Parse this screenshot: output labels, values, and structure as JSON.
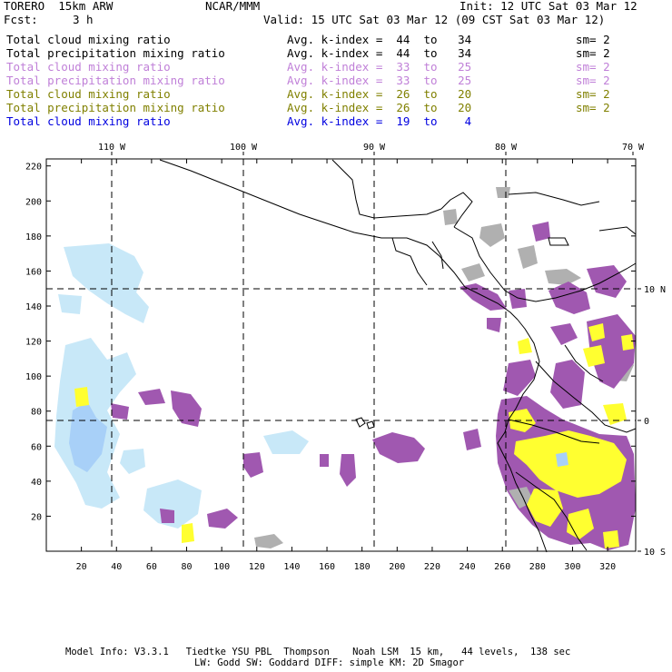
{
  "header": {
    "model": "TORERO  15km ARW",
    "org": "NCAR/MMM",
    "init": "Init: 12 UTC Sat 03 Mar 12",
    "fcst_label": "Fcst:",
    "fcst_value": "3 h",
    "valid": "Valid: 15 UTC Sat 03 Mar 12 (09 CST Sat 03 Mar 12)"
  },
  "legend": [
    {
      "field": "Total cloud mixing ratio",
      "kindex": "Avg. k-index =  44  to   34",
      "sm": "sm= 2",
      "color": "#000000"
    },
    {
      "field": "Total precipitation mixing ratio",
      "kindex": "Avg. k-index =  44  to   34",
      "sm": "sm= 2",
      "color": "#000000"
    },
    {
      "field": "Total cloud mixing ratio",
      "kindex": "Avg. k-index =  33  to   25",
      "sm": "sm= 2",
      "color": "#c080d8"
    },
    {
      "field": "Total precipitation mixing ratio",
      "kindex": "Avg. k-index =  33  to   25",
      "sm": "sm= 2",
      "color": "#c080d8"
    },
    {
      "field": "Total cloud mixing ratio",
      "kindex": "Avg. k-index =  26  to   20",
      "sm": "sm= 2",
      "color": "#808000"
    },
    {
      "field": "Total precipitation mixing ratio",
      "kindex": "Avg. k-index =  26  to   20",
      "sm": "sm= 2",
      "color": "#808000"
    },
    {
      "field": "Total cloud mixing ratio",
      "kindex": "Avg. k-index =  19  to    4",
      "sm": "",
      "color": "#0000e0"
    }
  ],
  "map": {
    "top_lon_labels": [
      "110 W",
      "100 W",
      "90 W",
      "80 W",
      "70 W"
    ],
    "right_lat_labels": [
      "10 N",
      "0",
      "10 S"
    ],
    "y_ticks": [
      "220",
      "200",
      "180",
      "160",
      "140",
      "120",
      "100",
      "80",
      "60",
      "40",
      "20"
    ],
    "x_ticks": [
      "20",
      "40",
      "60",
      "80",
      "100",
      "120",
      "140",
      "160",
      "180",
      "200",
      "220",
      "240",
      "260",
      "280",
      "300",
      "320"
    ],
    "colors": {
      "cloud_cold": "#b0b0b0",
      "precip_cold": "#a058b0",
      "cloud_mid": "#ffff30",
      "precip_warm": "#c8e8f8",
      "cloud_shallow": "#a8d0f8",
      "coast": "#000000"
    }
  },
  "footer": {
    "line1": "Model Info: V3.3.1   Tiedtke YSU PBL  Thompson    Noah LSM  15 km,   44 levels,  138 sec",
    "line2": "LW: Godd SW: Goddard DIFF: simple KM: 2D Smagor"
  }
}
